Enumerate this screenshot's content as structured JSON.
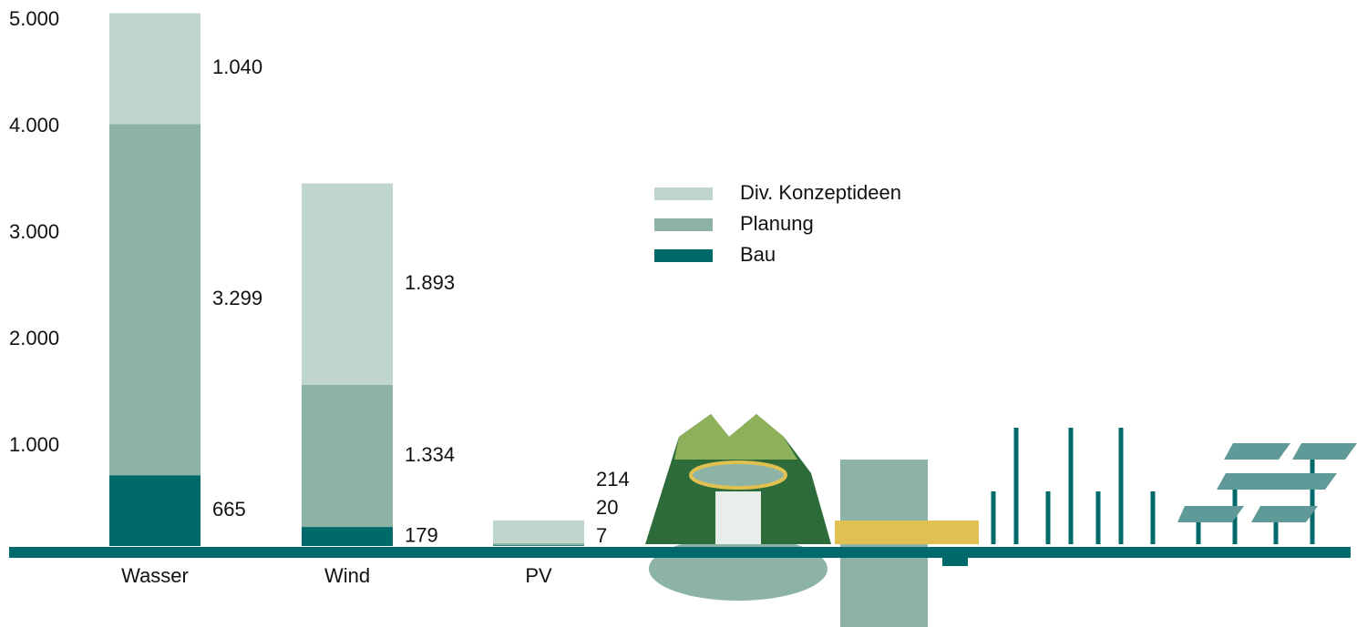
{
  "chart_data": {
    "type": "stacked_bar",
    "categories": [
      "Wasser",
      "Wind",
      "PV"
    ],
    "series": [
      {
        "name": "Bau",
        "color": "#006a6b",
        "values": [
          665,
          179,
          7
        ],
        "value_labels": [
          "665",
          "179",
          "7"
        ]
      },
      {
        "name": "Planung",
        "color": "#8db3a6",
        "values": [
          3299,
          1334,
          20
        ],
        "value_labels": [
          "3.299",
          "1.334",
          "20"
        ]
      },
      {
        "name": "Div. Konzeptideen",
        "color": "#c0d5cb",
        "values": [
          1040,
          1893,
          214
        ],
        "value_labels": [
          "1.040",
          "1.893",
          "214"
        ]
      }
    ],
    "ylim": [
      0,
      5000
    ],
    "yticks": [
      {
        "value": 1000,
        "label": "1.000"
      },
      {
        "value": 2000,
        "label": "2.000"
      },
      {
        "value": 3000,
        "label": "3.000"
      },
      {
        "value": 4000,
        "label": "4.000"
      },
      {
        "value": 5000,
        "label": "5.000"
      }
    ],
    "grid": false
  }
}
